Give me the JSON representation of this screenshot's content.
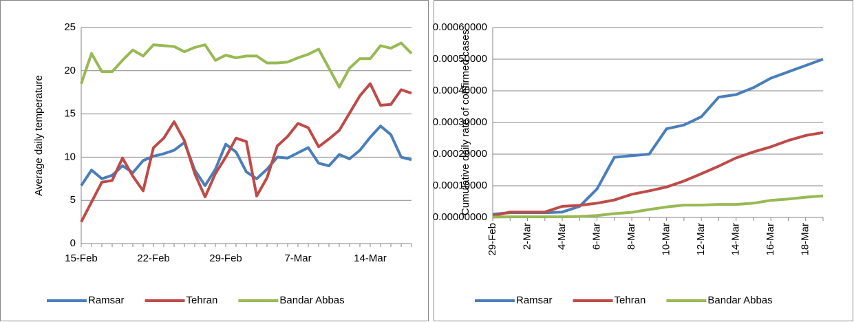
{
  "chart_data": [
    {
      "type": "line",
      "y_label": "Average daily temperature",
      "grid": true,
      "legend": "bottom",
      "categories": [
        "15-Feb",
        null,
        null,
        null,
        null,
        null,
        null,
        "22-Feb",
        null,
        null,
        null,
        null,
        null,
        null,
        "29-Feb",
        null,
        null,
        null,
        null,
        null,
        null,
        "7-Mar",
        null,
        null,
        null,
        null,
        null,
        null,
        "14-Mar",
        null,
        null,
        null,
        null
      ],
      "ylim": [
        0,
        25
      ],
      "yticks": [
        0,
        5,
        10,
        15,
        20,
        25
      ],
      "series": [
        {
          "name": "Ramsar",
          "color": "#4a7ebb",
          "values": [
            6.7,
            8.5,
            7.5,
            7.9,
            9.0,
            8.2,
            9.6,
            10.1,
            10.4,
            10.8,
            11.7,
            8.5,
            6.7,
            8.6,
            11.5,
            10.6,
            8.3,
            7.5,
            8.6,
            10.0,
            9.9,
            10.5,
            11.1,
            9.3,
            9.0,
            10.3,
            9.8,
            10.8,
            12.3,
            13.6,
            12.6,
            10.0,
            9.7
          ]
        },
        {
          "name": "Tehran",
          "color": "#be4b48",
          "values": [
            2.5,
            4.8,
            7.1,
            7.3,
            9.9,
            7.8,
            6.1,
            11.1,
            12.2,
            14.1,
            11.9,
            8.1,
            5.4,
            8.1,
            10.0,
            12.2,
            11.8,
            5.5,
            7.6,
            11.3,
            12.4,
            13.9,
            13.4,
            11.2,
            12.1,
            13.1,
            15.1,
            17.1,
            18.5,
            16.0,
            16.1,
            17.8,
            17.4
          ]
        },
        {
          "name": "Bandar Abbas",
          "color": "#98b954",
          "values": [
            18.5,
            22.0,
            19.9,
            19.9,
            21.2,
            22.4,
            21.7,
            23.0,
            22.9,
            22.8,
            22.2,
            22.7,
            23.0,
            21.2,
            21.8,
            21.5,
            21.7,
            21.7,
            20.9,
            20.9,
            21.0,
            21.5,
            21.9,
            22.5,
            20.3,
            18.1,
            20.3,
            21.4,
            21.4,
            22.9,
            22.6,
            23.2,
            22.0
          ]
        }
      ]
    },
    {
      "type": "line",
      "y_label": "Cumulative daily rate of confirmed cases",
      "grid": true,
      "legend": "bottom",
      "categories": [
        "29-Feb",
        null,
        "2-Mar",
        null,
        "4-Mar",
        null,
        "6-Mar",
        null,
        "8-Mar",
        null,
        "10-Mar",
        null,
        "12-Mar",
        null,
        "14-Mar",
        null,
        "16-Mar",
        null,
        "18-Mar",
        null
      ],
      "ylim": [
        0,
        0.0006
      ],
      "yticks": [
        {
          "value": 0,
          "label": "0.00000000"
        },
        {
          "value": 0.0001,
          "label": "0.00010000"
        },
        {
          "value": 0.0002,
          "label": "0.00020000"
        },
        {
          "value": 0.0003,
          "label": "0.00030000"
        },
        {
          "value": 0.0004,
          "label": "0.00040000"
        },
        {
          "value": 0.0005,
          "label": "0.00050000"
        },
        {
          "value": 0.0006,
          "label": "0.00060000"
        }
      ],
      "series": [
        {
          "name": "Ramsar",
          "color": "#4a7ebb",
          "values": [
            1e-05,
            1.5e-05,
            1.5e-05,
            1.5e-05,
            1.7e-05,
            3.5e-05,
            9e-05,
            0.00019,
            0.000195,
            0.0002,
            0.00028,
            0.000292,
            0.000318,
            0.00038,
            0.000388,
            0.00041,
            0.00044,
            0.00046,
            0.00048,
            0.0005
          ]
        },
        {
          "name": "Tehran",
          "color": "#be4b48",
          "values": [
            5e-06,
            1.7e-05,
            1.7e-05,
            1.7e-05,
            3.5e-05,
            3.8e-05,
            4.5e-05,
            5.5e-05,
            7.3e-05,
            8.4e-05,
            9.6e-05,
            0.000115,
            0.000138,
            0.000162,
            0.000188,
            0.000207,
            0.000223,
            0.000243,
            0.000259,
            0.000268
          ]
        },
        {
          "name": "Bandar Abbas",
          "color": "#98b954",
          "values": [
            1e-06,
            2e-06,
            2e-06,
            2e-06,
            2e-06,
            3e-06,
            6e-06,
            1.2e-05,
            1.6e-05,
            2.5e-05,
            3.3e-05,
            3.9e-05,
            3.9e-05,
            4.1e-05,
            4.1e-05,
            4.5e-05,
            5.4e-05,
            5.8e-05,
            6.4e-05,
            6.8e-05
          ]
        }
      ]
    }
  ]
}
